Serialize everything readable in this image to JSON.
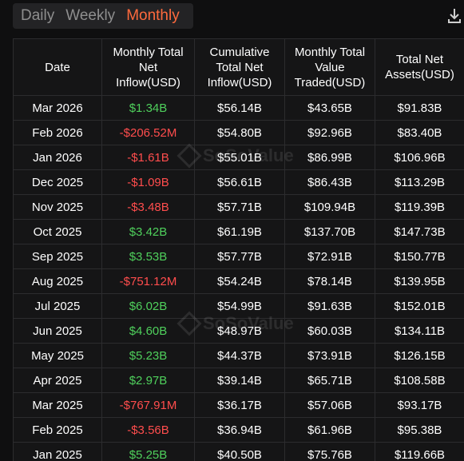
{
  "tabs": [
    {
      "label": "Daily",
      "active": false
    },
    {
      "label": "Weekly",
      "active": false
    },
    {
      "label": "Monthly",
      "active": true
    }
  ],
  "download_icon": "download-icon",
  "watermark": "SoSoValue",
  "colors": {
    "positive": "#4fd05c",
    "negative": "#ff4d4d",
    "accent": "#ff6a3d"
  },
  "table": {
    "headers": [
      "Date",
      "Monthly Total Net Inflow(USD)",
      "Cumulative Total Net Inflow(USD)",
      "Monthly Total Value Traded(USD)",
      "Total Net Assets(USD)"
    ],
    "rows": [
      {
        "date": "Mar 2026",
        "inflow": "$1.34B",
        "sign": "pos",
        "cumulative": "$56.14B",
        "traded": "$43.65B",
        "assets": "$91.83B"
      },
      {
        "date": "Feb 2026",
        "inflow": "-$206.52M",
        "sign": "neg",
        "cumulative": "$54.80B",
        "traded": "$92.96B",
        "assets": "$83.40B"
      },
      {
        "date": "Jan 2026",
        "inflow": "-$1.61B",
        "sign": "neg",
        "cumulative": "$55.01B",
        "traded": "$86.99B",
        "assets": "$106.96B"
      },
      {
        "date": "Dec 2025",
        "inflow": "-$1.09B",
        "sign": "neg",
        "cumulative": "$56.61B",
        "traded": "$86.43B",
        "assets": "$113.29B"
      },
      {
        "date": "Nov 2025",
        "inflow": "-$3.48B",
        "sign": "neg",
        "cumulative": "$57.71B",
        "traded": "$109.94B",
        "assets": "$119.39B"
      },
      {
        "date": "Oct 2025",
        "inflow": "$3.42B",
        "sign": "pos",
        "cumulative": "$61.19B",
        "traded": "$137.70B",
        "assets": "$147.73B"
      },
      {
        "date": "Sep 2025",
        "inflow": "$3.53B",
        "sign": "pos",
        "cumulative": "$57.77B",
        "traded": "$72.91B",
        "assets": "$150.77B"
      },
      {
        "date": "Aug 2025",
        "inflow": "-$751.12M",
        "sign": "neg",
        "cumulative": "$54.24B",
        "traded": "$78.14B",
        "assets": "$139.95B"
      },
      {
        "date": "Jul 2025",
        "inflow": "$6.02B",
        "sign": "pos",
        "cumulative": "$54.99B",
        "traded": "$91.63B",
        "assets": "$152.01B"
      },
      {
        "date": "Jun 2025",
        "inflow": "$4.60B",
        "sign": "pos",
        "cumulative": "$48.97B",
        "traded": "$60.03B",
        "assets": "$134.11B"
      },
      {
        "date": "May 2025",
        "inflow": "$5.23B",
        "sign": "pos",
        "cumulative": "$44.37B",
        "traded": "$73.91B",
        "assets": "$126.15B"
      },
      {
        "date": "Apr 2025",
        "inflow": "$2.97B",
        "sign": "pos",
        "cumulative": "$39.14B",
        "traded": "$65.71B",
        "assets": "$108.58B"
      },
      {
        "date": "Mar 2025",
        "inflow": "-$767.91M",
        "sign": "neg",
        "cumulative": "$36.17B",
        "traded": "$57.06B",
        "assets": "$93.17B"
      },
      {
        "date": "Feb 2025",
        "inflow": "-$3.56B",
        "sign": "neg",
        "cumulative": "$36.94B",
        "traded": "$61.96B",
        "assets": "$95.38B"
      },
      {
        "date": "Jan 2025",
        "inflow": "$5.25B",
        "sign": "pos",
        "cumulative": "$40.50B",
        "traded": "$75.76B",
        "assets": "$119.66B"
      }
    ]
  }
}
